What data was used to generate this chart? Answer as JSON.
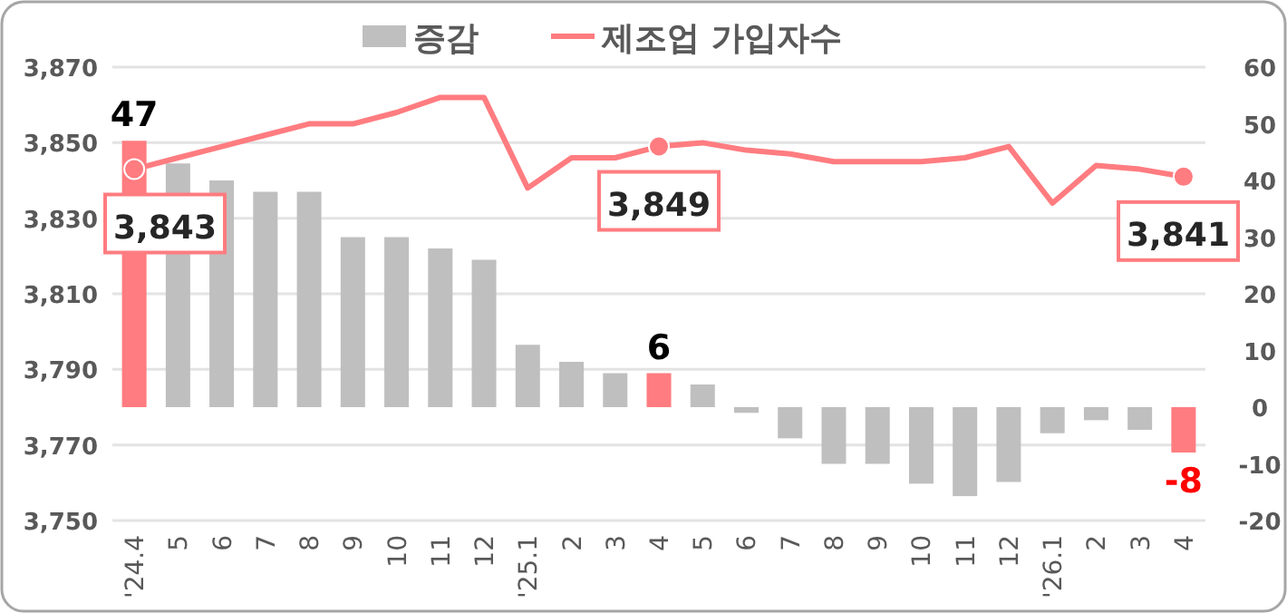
{
  "chart_data": {
    "type": "bar",
    "categories": [
      "'24.4",
      "5",
      "6",
      "7",
      "8",
      "9",
      "10",
      "11",
      "12",
      "'25.1",
      "2",
      "3",
      "4",
      "5",
      "6",
      "7",
      "8",
      "9",
      "10",
      "11",
      "12",
      "'26.1",
      "2",
      "3",
      "4"
    ],
    "series": [
      {
        "name": "증감",
        "axis": "y2",
        "colors": [
          "#ff7c80",
          "#bfbfbf",
          "#bfbfbf",
          "#bfbfbf",
          "#bfbfbf",
          "#bfbfbf",
          "#bfbfbf",
          "#bfbfbf",
          "#bfbfbf",
          "#bfbfbf",
          "#bfbfbf",
          "#bfbfbf",
          "#ff7c80",
          "#bfbfbf",
          "#bfbfbf",
          "#bfbfbf",
          "#bfbfbf",
          "#bfbfbf",
          "#bfbfbf",
          "#bfbfbf",
          "#bfbfbf",
          "#bfbfbf",
          "#bfbfbf",
          "#bfbfbf",
          "#ff7c80"
        ],
        "values": [
          47,
          43,
          40,
          38,
          38,
          30,
          30,
          28,
          26,
          11,
          8,
          6,
          6,
          4,
          -1,
          -5.5,
          -10,
          -10,
          -13.5,
          -15.7,
          -13.2,
          -4.6,
          -2.3,
          -4,
          -8
        ],
        "value_labels": [
          "47",
          null,
          null,
          null,
          null,
          null,
          null,
          null,
          null,
          null,
          null,
          null,
          "6",
          null,
          null,
          null,
          null,
          null,
          null,
          null,
          null,
          null,
          null,
          null,
          "-8"
        ]
      },
      {
        "name": "제조업 가입자수",
        "type": "line",
        "axis": "y",
        "color": "#ff7c80",
        "values": [
          3843,
          3846,
          3849,
          3852,
          3855,
          3855,
          3858,
          3862,
          3862,
          3838,
          3846,
          3846,
          3849,
          3850,
          3848,
          3847,
          3845,
          3845,
          3845,
          3846,
          3849,
          3834,
          3844,
          3843,
          3841
        ],
        "value_labels": [
          "3,843",
          null,
          null,
          null,
          null,
          null,
          null,
          null,
          null,
          null,
          null,
          null,
          "3,849",
          null,
          null,
          null,
          null,
          null,
          null,
          null,
          null,
          null,
          null,
          null,
          "3,841"
        ]
      }
    ],
    "ylim": [
      3750,
      3870
    ],
    "yticks": [
      {
        "value": 3750,
        "label": "3,750"
      },
      {
        "value": 3770,
        "label": "3,770"
      },
      {
        "value": 3790,
        "label": "3,790"
      },
      {
        "value": 3810,
        "label": "3,810"
      },
      {
        "value": 3830,
        "label": "3,830"
      },
      {
        "value": 3850,
        "label": "3,850"
      },
      {
        "value": 3870,
        "label": "3,870"
      }
    ],
    "y2lim": [
      -20,
      60
    ],
    "y2ticks": [
      -20,
      -10,
      0,
      10,
      20,
      30,
      40,
      50,
      60
    ],
    "grid": true,
    "legend": "top"
  }
}
